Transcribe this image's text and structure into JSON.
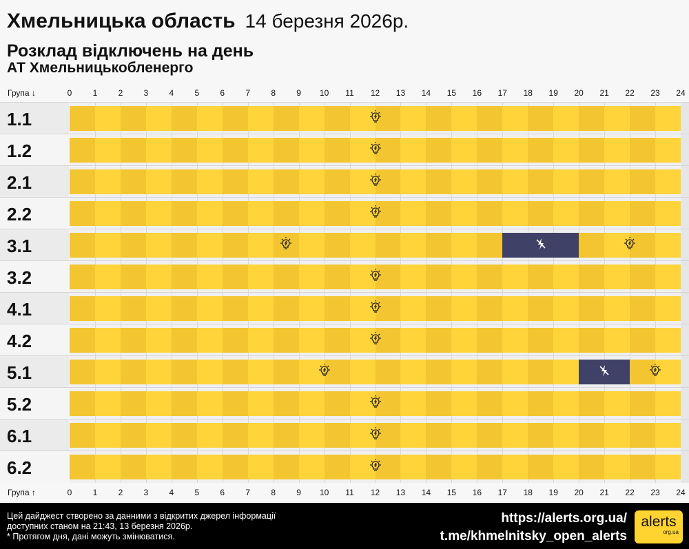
{
  "header": {
    "region": "Хмельницька область",
    "date": "14 березня 2026р.",
    "subtitle": "Розклад відключень на день",
    "company": "АТ Хмельницькобленерго"
  },
  "axis": {
    "top_label": "Група ↓",
    "bottom_label": "Група ↑",
    "hours": [
      "0",
      "1",
      "2",
      "3",
      "4",
      "5",
      "6",
      "7",
      "8",
      "9",
      "10",
      "11",
      "12",
      "13",
      "14",
      "15",
      "16",
      "17",
      "18",
      "19",
      "20",
      "21",
      "22",
      "23",
      "24"
    ]
  },
  "colors": {
    "on_even": "#f3c531",
    "on_odd": "#fed43a",
    "off": "#3f4266"
  },
  "icons": {
    "on": "lightbulb-icon",
    "off": "no-power-icon"
  },
  "groups": [
    {
      "name": "1.1",
      "outages": []
    },
    {
      "name": "1.2",
      "outages": []
    },
    {
      "name": "2.1",
      "outages": []
    },
    {
      "name": "2.2",
      "outages": []
    },
    {
      "name": "3.1",
      "outages": [
        [
          17,
          20
        ]
      ]
    },
    {
      "name": "3.2",
      "outages": []
    },
    {
      "name": "4.1",
      "outages": []
    },
    {
      "name": "4.2",
      "outages": []
    },
    {
      "name": "5.1",
      "outages": [
        [
          20,
          22
        ]
      ]
    },
    {
      "name": "5.2",
      "outages": []
    },
    {
      "name": "6.1",
      "outages": []
    },
    {
      "name": "6.2",
      "outages": []
    }
  ],
  "footer": {
    "line1": "Цей дайджест створено за данними з відкритих джерел інформації",
    "line2": "доступних станом на 21:43, 13 березня 2026р.",
    "line3": "* Протягом дня, дані можуть змінюватися.",
    "url": "https://alerts.org.ua/",
    "telegram": "t.me/khmelnitsky_open_alerts",
    "logo": "alerts",
    "logo_sub": "org.ua"
  }
}
